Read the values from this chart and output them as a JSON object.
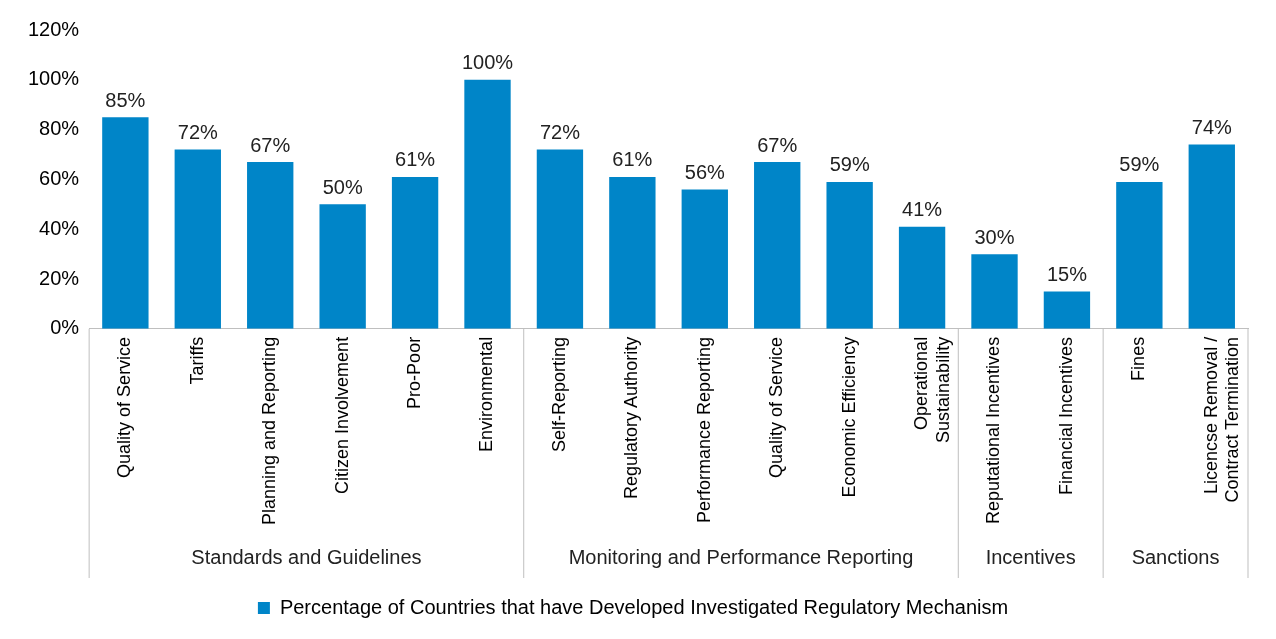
{
  "chart_data": {
    "type": "bar",
    "categories": [
      "Quality of Service",
      "Tariffs",
      "Planning and Reporting",
      "Citizen Involvement",
      "Pro-Poor",
      "Environmental",
      "Self-Reporting",
      "Regulatory Authority",
      "Performance Reporting",
      "Quality of Service",
      "Economic Efficiency",
      "Operational\nSustainability",
      "Reputational Incentives",
      "Financial Incentives",
      "Fines",
      "Licencse Removal /\nContract Termination"
    ],
    "series": [
      {
        "name": "Percentage of Countries that have Developed Investigated Regulatory Mechanism",
        "color": "#0085c8",
        "values": [
          85,
          72,
          67,
          50,
          61,
          100,
          72,
          61,
          56,
          67,
          59,
          41,
          30,
          15,
          59,
          74
        ],
        "value_labels": [
          "85%",
          "72%",
          "67%",
          "50%",
          "61%",
          "100%",
          "72%",
          "61%",
          "56%",
          "67%",
          "59%",
          "41%",
          "30%",
          "15%",
          "59%",
          "74%"
        ]
      }
    ],
    "ylim": [
      0,
      120
    ],
    "yticks": [
      {
        "value": 0,
        "label": "0%"
      },
      {
        "value": 20,
        "label": "20%"
      },
      {
        "value": 40,
        "label": "40%"
      },
      {
        "value": 60,
        "label": "60%"
      },
      {
        "value": 80,
        "label": "80%"
      },
      {
        "value": 100,
        "label": "100%"
      },
      {
        "value": 120,
        "label": "120%"
      }
    ],
    "annotations": [
      "Standards and Guidelines",
      "Monitoring and Performance Reporting",
      "Incentives",
      "Sanctions"
    ],
    "grid": false,
    "legend": "bottom"
  }
}
